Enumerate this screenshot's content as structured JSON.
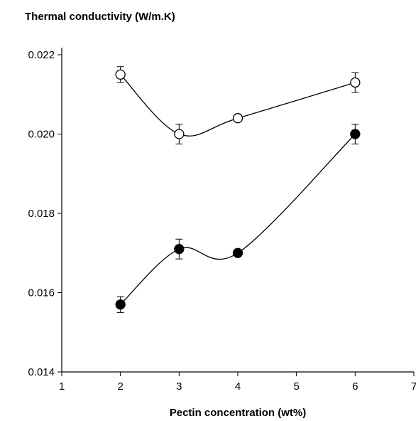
{
  "chart_data": {
    "type": "line",
    "title": "Thermal conductivity (W/m.K)",
    "x_label": "Pectin concentration (wt%)",
    "x": [
      2,
      3,
      4,
      6
    ],
    "series": [
      {
        "color": "#000000",
        "marker_fill": "#ffffff",
        "values": [
          0.0215,
          0.02,
          0.0204,
          0.0213
        ],
        "errors": [
          0.0002,
          0.00025,
          5e-05,
          0.00025
        ]
      },
      {
        "color": "#000000",
        "marker_fill": "#000000",
        "values": [
          0.0157,
          0.0171,
          0.017,
          0.02
        ],
        "errors": [
          0.0002,
          0.00025,
          5e-05,
          0.00025
        ]
      }
    ],
    "xlim": [
      1,
      7
    ],
    "xticks": [
      1,
      2,
      3,
      4,
      5,
      6,
      7
    ],
    "ylim": [
      0.014,
      0.022
    ],
    "yticks": [
      0.014,
      0.016,
      0.018,
      {
        "value": 0.02,
        "label": "0.020"
      },
      0.022
    ],
    "smooth": true
  }
}
